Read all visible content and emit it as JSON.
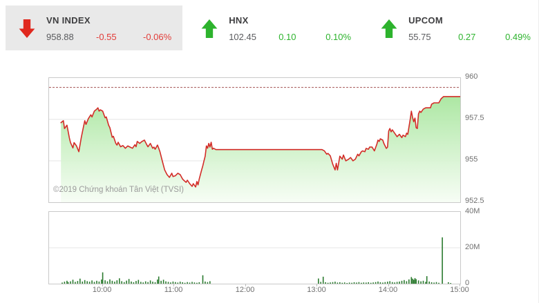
{
  "header": {
    "indices": [
      {
        "name": "VN INDEX",
        "value": "958.88",
        "change": "-0.55",
        "percent": "-0.06%",
        "direction": "down",
        "selected": true
      },
      {
        "name": "HNX",
        "value": "102.45",
        "change": "0.10",
        "percent": "0.10%",
        "direction": "up",
        "selected": false
      },
      {
        "name": "UPCOM",
        "value": "55.75",
        "change": "0.27",
        "percent": "0.49%",
        "direction": "up",
        "selected": false
      }
    ]
  },
  "colors": {
    "up": "#2db32d",
    "down": "#e0281e",
    "down_text": "#e23c38",
    "line": "#d32b27",
    "ref_line": "#a35252",
    "volume_bar": "#2a7a2e",
    "fill_top": "#a8e69e",
    "fill_bottom": "#f6fdf4",
    "grid": "#e4e4e4",
    "selected_bg": "#e9e9e9"
  },
  "chart": {
    "copyright": "©2019 Chứng khoán Tân Việt (TVSI)"
  },
  "chart_data": [
    {
      "type": "area",
      "name": "VN INDEX intraday price",
      "x_axis": {
        "range": [
          "09:15",
          "15:00"
        ],
        "ticks": [
          "10:00",
          "11:00",
          "12:00",
          "13:00",
          "14:00",
          "15:00"
        ]
      },
      "y_axis": {
        "side": "right",
        "range": [
          952.5,
          960
        ],
        "ticks": [
          {
            "label": "960",
            "value": 960
          },
          {
            "label": "957.5",
            "value": 957.5
          },
          {
            "label": "955",
            "value": 955
          },
          {
            "label": "952.5",
            "value": 952.5
          }
        ]
      },
      "reference_line": 959.43,
      "points": [
        [
          "09:25",
          957.3
        ],
        [
          "09:27",
          957.42
        ],
        [
          "09:28",
          956.95
        ],
        [
          "09:30",
          957.15
        ],
        [
          "09:32",
          956.4
        ],
        [
          "09:33",
          956.1
        ],
        [
          "09:35",
          955.78
        ],
        [
          "09:36",
          956.1
        ],
        [
          "09:38",
          955.9
        ],
        [
          "09:40",
          955.55
        ],
        [
          "09:42",
          956.4
        ],
        [
          "09:44",
          957.1
        ],
        [
          "09:45",
          957.42
        ],
        [
          "09:46",
          957.2
        ],
        [
          "09:48",
          957.55
        ],
        [
          "09:50",
          957.78
        ],
        [
          "09:51",
          957.65
        ],
        [
          "09:53",
          958.0
        ],
        [
          "09:55",
          958.12
        ],
        [
          "09:56",
          958.2
        ],
        [
          "09:57",
          958.0
        ],
        [
          "09:58",
          958.08
        ],
        [
          "10:00",
          958.0
        ],
        [
          "10:02",
          957.6
        ],
        [
          "10:03",
          957.65
        ],
        [
          "10:05",
          957.15
        ],
        [
          "10:06",
          957.0
        ],
        [
          "10:08",
          956.42
        ],
        [
          "10:09",
          956.48
        ],
        [
          "10:11",
          956.05
        ],
        [
          "10:12",
          955.95
        ],
        [
          "10:13",
          956.12
        ],
        [
          "10:15",
          955.85
        ],
        [
          "10:17",
          955.92
        ],
        [
          "10:19",
          955.76
        ],
        [
          "10:21",
          955.9
        ],
        [
          "10:23",
          955.83
        ],
        [
          "10:25",
          955.76
        ],
        [
          "10:27",
          955.97
        ],
        [
          "10:28",
          955.85
        ],
        [
          "10:29",
          956.17
        ],
        [
          "10:31",
          956.05
        ],
        [
          "10:33",
          956.17
        ],
        [
          "10:35",
          956.25
        ],
        [
          "10:37",
          955.97
        ],
        [
          "10:38",
          955.85
        ],
        [
          "10:40",
          956.05
        ],
        [
          "10:42",
          955.76
        ],
        [
          "10:43",
          955.83
        ],
        [
          "10:44",
          955.7
        ],
        [
          "10:46",
          955.95
        ],
        [
          "10:47",
          955.76
        ],
        [
          "10:48",
          955.56
        ],
        [
          "10:50",
          955.0
        ],
        [
          "10:52",
          954.45
        ],
        [
          "10:54",
          954.17
        ],
        [
          "10:56",
          954.0
        ],
        [
          "10:58",
          954.25
        ],
        [
          "10:59",
          954.05
        ],
        [
          "11:01",
          954.1
        ],
        [
          "11:03",
          954.25
        ],
        [
          "11:05",
          954.17
        ],
        [
          "11:07",
          953.9
        ],
        [
          "11:08",
          953.83
        ],
        [
          "11:10",
          953.7
        ],
        [
          "11:11",
          953.83
        ],
        [
          "11:13",
          953.62
        ],
        [
          "11:15",
          953.46
        ],
        [
          "11:16",
          953.62
        ],
        [
          "11:18",
          953.42
        ],
        [
          "11:19",
          953.75
        ],
        [
          "11:20",
          953.55
        ],
        [
          "11:21",
          953.9
        ],
        [
          "11:23",
          954.45
        ],
        [
          "11:24",
          954.7
        ],
        [
          "11:25",
          955.0
        ],
        [
          "11:26",
          955.28
        ],
        [
          "11:27",
          955.9
        ],
        [
          "11:28",
          955.76
        ],
        [
          "11:29",
          956.05
        ],
        [
          "11:30",
          955.83
        ],
        [
          "11:31",
          956.12
        ],
        [
          "11:32",
          955.7
        ],
        [
          "11:33",
          955.76
        ],
        [
          "11:35",
          955.68
        ],
        [
          "13:04",
          955.68
        ],
        [
          "13:06",
          955.6
        ],
        [
          "13:08",
          955.4
        ],
        [
          "13:09",
          955.45
        ],
        [
          "13:11",
          955.3
        ],
        [
          "13:13",
          954.8
        ],
        [
          "13:15",
          954.45
        ],
        [
          "13:16",
          954.85
        ],
        [
          "13:17",
          954.45
        ],
        [
          "13:19",
          955.28
        ],
        [
          "13:21",
          955.1
        ],
        [
          "13:22",
          955.35
        ],
        [
          "13:24",
          955.0
        ],
        [
          "13:26",
          955.08
        ],
        [
          "13:28",
          955.2
        ],
        [
          "13:30",
          955.0
        ],
        [
          "13:32",
          955.1
        ],
        [
          "13:34",
          955.4
        ],
        [
          "13:35",
          955.3
        ],
        [
          "13:37",
          955.55
        ],
        [
          "13:38",
          955.6
        ],
        [
          "13:40",
          955.55
        ],
        [
          "13:41",
          955.75
        ],
        [
          "13:43",
          955.7
        ],
        [
          "13:44",
          955.83
        ],
        [
          "13:46",
          955.83
        ],
        [
          "13:48",
          955.6
        ],
        [
          "13:50",
          956.0
        ],
        [
          "13:51",
          956.25
        ],
        [
          "13:52",
          956.17
        ],
        [
          "13:53",
          956.33
        ],
        [
          "13:55",
          956.25
        ],
        [
          "13:56",
          956.04
        ],
        [
          "13:58",
          955.75
        ],
        [
          "13:59",
          955.83
        ],
        [
          "14:00",
          956.8
        ],
        [
          "14:01",
          956.95
        ],
        [
          "14:02",
          956.75
        ],
        [
          "14:03",
          956.87
        ],
        [
          "14:05",
          956.67
        ],
        [
          "14:07",
          956.46
        ],
        [
          "14:09",
          956.6
        ],
        [
          "14:11",
          956.4
        ],
        [
          "14:12",
          956.55
        ],
        [
          "14:14",
          956.46
        ],
        [
          "14:15",
          956.67
        ],
        [
          "14:16",
          956.6
        ],
        [
          "14:18",
          957.5
        ],
        [
          "14:19",
          958.0
        ],
        [
          "14:20",
          957.63
        ],
        [
          "14:21",
          957.36
        ],
        [
          "14:22",
          957.58
        ],
        [
          "14:23",
          957.0
        ],
        [
          "14:24",
          956.95
        ],
        [
          "14:25",
          957.83
        ],
        [
          "14:26",
          958.0
        ],
        [
          "14:27",
          957.92
        ],
        [
          "14:29",
          958.12
        ],
        [
          "14:31",
          958.2
        ],
        [
          "14:35",
          958.2
        ],
        [
          "14:36",
          958.42
        ],
        [
          "14:38",
          958.5
        ],
        [
          "14:42",
          958.5
        ],
        [
          "14:44",
          958.75
        ],
        [
          "14:46",
          958.88
        ],
        [
          "15:00",
          958.88
        ]
      ]
    },
    {
      "type": "bar",
      "name": "Trading volume",
      "y_axis": {
        "side": "right",
        "range_millions": [
          0,
          40
        ],
        "ticks": [
          {
            "label": "40M",
            "value": 40
          },
          {
            "label": "20M",
            "value": 20
          },
          {
            "label": "0",
            "value": 0
          }
        ]
      },
      "bars": [
        [
          "09:26",
          0.6
        ],
        [
          "09:28",
          1.1
        ],
        [
          "09:30",
          1.6
        ],
        [
          "09:31",
          0.9
        ],
        [
          "09:33",
          1.3
        ],
        [
          "09:35",
          2.2
        ],
        [
          "09:37",
          1.0
        ],
        [
          "09:39",
          1.5
        ],
        [
          "09:41",
          2.8
        ],
        [
          "09:43",
          1.2
        ],
        [
          "09:45",
          2.0
        ],
        [
          "09:47",
          1.4
        ],
        [
          "09:49",
          1.1
        ],
        [
          "09:51",
          1.8
        ],
        [
          "09:53",
          1.0
        ],
        [
          "09:55",
          1.6
        ],
        [
          "09:57",
          1.2
        ],
        [
          "09:59",
          2.3
        ],
        [
          "10:00",
          6.3
        ],
        [
          "10:02",
          1.9
        ],
        [
          "10:04",
          1.3
        ],
        [
          "10:06",
          2.4
        ],
        [
          "10:08",
          1.6
        ],
        [
          "10:10",
          1.1
        ],
        [
          "10:12",
          1.9
        ],
        [
          "10:14",
          3.0
        ],
        [
          "10:16",
          1.4
        ],
        [
          "10:18",
          0.9
        ],
        [
          "10:20",
          1.7
        ],
        [
          "10:22",
          2.6
        ],
        [
          "10:24",
          1.2
        ],
        [
          "10:26",
          0.8
        ],
        [
          "10:28",
          1.5
        ],
        [
          "10:30",
          2.1
        ],
        [
          "10:32",
          1.0
        ],
        [
          "10:34",
          0.7
        ],
        [
          "10:36",
          1.3
        ],
        [
          "10:38",
          0.9
        ],
        [
          "10:40",
          1.8
        ],
        [
          "10:42",
          1.1
        ],
        [
          "10:44",
          0.8
        ],
        [
          "10:46",
          2.3
        ],
        [
          "10:47",
          4.0
        ],
        [
          "10:49",
          1.6
        ],
        [
          "10:51",
          2.2
        ],
        [
          "10:53",
          1.3
        ],
        [
          "10:55",
          1.0
        ],
        [
          "10:57",
          0.7
        ],
        [
          "10:59",
          1.2
        ],
        [
          "11:01",
          0.9
        ],
        [
          "11:03",
          0.6
        ],
        [
          "11:05",
          1.1
        ],
        [
          "11:07",
          0.8
        ],
        [
          "11:09",
          0.5
        ],
        [
          "11:11",
          0.9
        ],
        [
          "11:13",
          0.6
        ],
        [
          "11:15",
          1.0
        ],
        [
          "11:17",
          0.7
        ],
        [
          "11:19",
          0.5
        ],
        [
          "11:21",
          0.8
        ],
        [
          "11:24",
          4.7
        ],
        [
          "11:26",
          1.2
        ],
        [
          "11:28",
          0.9
        ],
        [
          "11:30",
          1.4
        ],
        [
          "13:01",
          2.9
        ],
        [
          "13:03",
          1.0
        ],
        [
          "13:05",
          3.9
        ],
        [
          "13:07",
          0.8
        ],
        [
          "13:09",
          0.5
        ],
        [
          "13:11",
          0.7
        ],
        [
          "13:13",
          0.9
        ],
        [
          "13:15",
          1.1
        ],
        [
          "13:17",
          0.6
        ],
        [
          "13:19",
          0.8
        ],
        [
          "13:21",
          0.5
        ],
        [
          "13:23",
          0.7
        ],
        [
          "13:25",
          0.4
        ],
        [
          "13:27",
          0.6
        ],
        [
          "13:29",
          0.5
        ],
        [
          "13:31",
          0.8
        ],
        [
          "13:33",
          0.6
        ],
        [
          "13:35",
          0.9
        ],
        [
          "13:37",
          0.5
        ],
        [
          "13:39",
          0.7
        ],
        [
          "13:41",
          0.6
        ],
        [
          "13:43",
          0.8
        ],
        [
          "13:45",
          0.5
        ],
        [
          "13:47",
          0.7
        ],
        [
          "13:49",
          0.9
        ],
        [
          "13:51",
          1.2
        ],
        [
          "13:53",
          0.8
        ],
        [
          "13:55",
          0.6
        ],
        [
          "13:57",
          0.9
        ],
        [
          "13:59",
          1.1
        ],
        [
          "14:01",
          1.4
        ],
        [
          "14:03",
          0.9
        ],
        [
          "14:05",
          0.7
        ],
        [
          "14:07",
          1.0
        ],
        [
          "14:09",
          1.2
        ],
        [
          "14:11",
          1.6
        ],
        [
          "14:13",
          2.0
        ],
        [
          "14:15",
          1.4
        ],
        [
          "14:17",
          2.4
        ],
        [
          "14:19",
          3.7
        ],
        [
          "14:20",
          2.8
        ],
        [
          "14:21",
          2.2
        ],
        [
          "14:22",
          3.1
        ],
        [
          "14:23",
          2.5
        ],
        [
          "14:25",
          1.8
        ],
        [
          "14:27",
          1.3
        ],
        [
          "14:29",
          1.6
        ],
        [
          "14:31",
          1.0
        ],
        [
          "14:32",
          4.2
        ],
        [
          "14:34",
          1.2
        ],
        [
          "14:36",
          0.8
        ],
        [
          "14:38",
          0.6
        ],
        [
          "14:40",
          0.9
        ],
        [
          "14:42",
          0.5
        ],
        [
          "14:45",
          25.8
        ],
        [
          "14:50",
          0.8
        ],
        [
          "14:52",
          0.4
        ]
      ]
    }
  ]
}
